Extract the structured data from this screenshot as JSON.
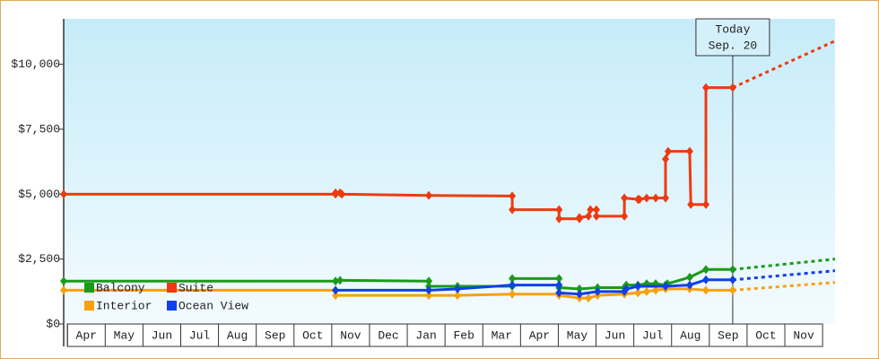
{
  "chart_data": {
    "type": "line",
    "xlim": [
      -0.1,
      20.33
    ],
    "ylim": [
      0,
      11750
    ],
    "xticks": [
      {
        "value": 0,
        "label": "Apr"
      },
      {
        "value": 1,
        "label": "May"
      },
      {
        "value": 2,
        "label": "Jun"
      },
      {
        "value": 3,
        "label": "Jul"
      },
      {
        "value": 4,
        "label": "Aug"
      },
      {
        "value": 5,
        "label": "Sep"
      },
      {
        "value": 6,
        "label": "Oct"
      },
      {
        "value": 7,
        "label": "Nov"
      },
      {
        "value": 8,
        "label": "Dec"
      },
      {
        "value": 9,
        "label": "Jan"
      },
      {
        "value": 10,
        "label": "Feb"
      },
      {
        "value": 11,
        "label": "Mar"
      },
      {
        "value": 12,
        "label": "Apr"
      },
      {
        "value": 13,
        "label": "May"
      },
      {
        "value": 14,
        "label": "Jun"
      },
      {
        "value": 15,
        "label": "Jul"
      },
      {
        "value": 16,
        "label": "Aug"
      },
      {
        "value": 17,
        "label": "Sep"
      },
      {
        "value": 18,
        "label": "Oct"
      },
      {
        "value": 19,
        "label": "Nov"
      }
    ],
    "yticks": [
      {
        "value": 0,
        "label": "$0"
      },
      {
        "value": 2500,
        "label": "$2,500"
      },
      {
        "value": 5000,
        "label": "$5,000"
      },
      {
        "value": 7500,
        "label": "$7,500"
      },
      {
        "value": 10000,
        "label": "$10,000"
      }
    ],
    "annotation": {
      "x": 17.62,
      "lines": [
        "Today",
        "Sep. 20"
      ]
    },
    "projection_x": [
      17.62,
      20.33
    ],
    "series": [
      {
        "name": "Balcony",
        "color": "#1a9a1a",
        "x": [
          -0.1,
          7.1,
          7.22,
          9.57,
          9.57,
          10.33,
          11.78,
          11.78,
          13.02,
          13.02,
          13.56,
          14.04,
          14.75,
          14.8,
          15.11,
          15.34,
          15.58,
          15.84,
          15.89,
          16.48,
          16.91,
          17.62
        ],
        "values": [
          1650,
          1650,
          1680,
          1650,
          1450,
          1450,
          1450,
          1750,
          1750,
          1400,
          1350,
          1400,
          1400,
          1500,
          1500,
          1550,
          1550,
          1500,
          1550,
          1800,
          2100,
          2100
        ],
        "projection": [
          2100,
          2500
        ]
      },
      {
        "name": "Suite",
        "color": "#ee3a10",
        "x": [
          -0.1,
          7.1,
          7.1,
          7.22,
          7.27,
          9.57,
          11.78,
          11.78,
          13.02,
          13.02,
          13.56,
          13.56,
          13.8,
          13.85,
          14.01,
          14.01,
          14.75,
          14.75,
          15.11,
          15.15,
          15.34,
          15.58,
          15.84,
          15.84,
          15.91,
          16.48,
          16.51,
          16.91,
          16.91,
          17.62
        ],
        "values": [
          5000,
          5000,
          5050,
          5050,
          5000,
          4950,
          4930,
          4400,
          4400,
          4050,
          4050,
          4100,
          4150,
          4400,
          4400,
          4150,
          4150,
          4850,
          4800,
          4800,
          4850,
          4850,
          4850,
          6350,
          6650,
          6650,
          4600,
          4600,
          9100,
          9100
        ],
        "projection": [
          9100,
          10900
        ]
      },
      {
        "name": "Interior",
        "color": "#f8a010",
        "x": [
          -0.1,
          7.1,
          7.1,
          9.57,
          10.33,
          11.78,
          13.02,
          13.02,
          13.56,
          13.8,
          14.04,
          14.75,
          15.11,
          15.34,
          15.58,
          15.84,
          16.48,
          16.91,
          17.62
        ],
        "values": [
          1300,
          1300,
          1100,
          1100,
          1100,
          1150,
          1150,
          1100,
          1000,
          1000,
          1100,
          1150,
          1200,
          1250,
          1300,
          1350,
          1350,
          1300,
          1300
        ],
        "projection": [
          1300,
          1600
        ]
      },
      {
        "name": "Ocean View",
        "color": "#1040e8",
        "x": [
          7.1,
          9.57,
          10.33,
          11.78,
          13.02,
          13.02,
          13.56,
          14.04,
          14.75,
          14.8,
          15.11,
          15.84,
          16.48,
          16.91,
          17.62
        ],
        "values": [
          1300,
          1300,
          1350,
          1500,
          1500,
          1200,
          1150,
          1250,
          1250,
          1350,
          1450,
          1450,
          1500,
          1700,
          1700
        ],
        "projection": [
          1700,
          2050
        ]
      }
    ]
  }
}
